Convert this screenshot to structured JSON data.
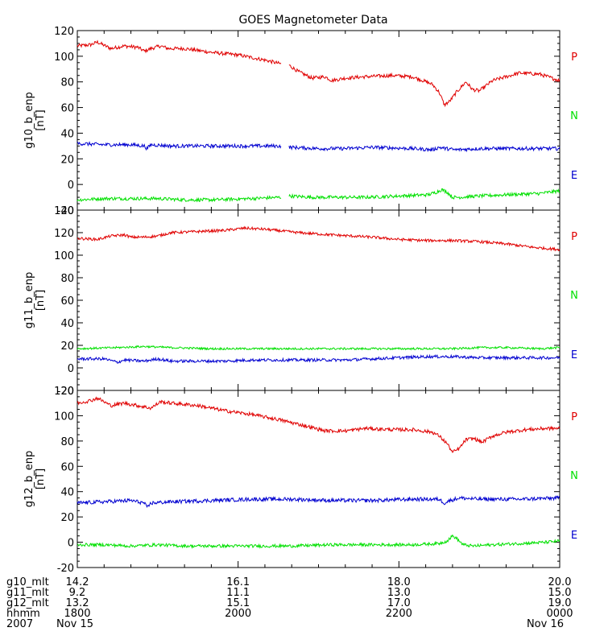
{
  "chart_data": {
    "title": "GOES Magnetometer Data",
    "type": "line",
    "x_range": [
      0,
      360
    ],
    "x_unit": "minutes since 2007 Nov 15 18:00",
    "series_colors": {
      "P": "#e00000",
      "N": "#00e000",
      "E": "#0000d0"
    },
    "panels": [
      {
        "ylabel": "g10_b_enp",
        "yunit": "[nT]",
        "ylim": [
          -20,
          120
        ],
        "yticks": [
          -20,
          0,
          20,
          40,
          60,
          80,
          100,
          120
        ],
        "legend": [
          "P",
          "N",
          "E"
        ],
        "gap": [
          152,
          158
        ],
        "series": [
          {
            "name": "P",
            "noise": 1.4,
            "points": [
              [
                0,
                108
              ],
              [
                10,
                109
              ],
              [
                15,
                111
              ],
              [
                25,
                106
              ],
              [
                35,
                108
              ],
              [
                45,
                107
              ],
              [
                50,
                104
              ],
              [
                55,
                106
              ],
              [
                62,
                108
              ],
              [
                68,
                106
              ],
              [
                80,
                106
              ],
              [
                100,
                103
              ],
              [
                120,
                101
              ],
              [
                140,
                97
              ],
              [
                152,
                94
              ],
              [
                158,
                93
              ],
              [
                165,
                88
              ],
              [
                175,
                83
              ],
              [
                185,
                84
              ],
              [
                190,
                81
              ],
              [
                200,
                83
              ],
              [
                215,
                84
              ],
              [
                235,
                85
              ],
              [
                250,
                84
              ],
              [
                258,
                81
              ],
              [
                265,
                78
              ],
              [
                270,
                72
              ],
              [
                274,
                62
              ],
              [
                278,
                65
              ],
              [
                283,
                72
              ],
              [
                290,
                80
              ],
              [
                295,
                74
              ],
              [
                300,
                73
              ],
              [
                310,
                81
              ],
              [
                320,
                84
              ],
              [
                330,
                87
              ],
              [
                345,
                86
              ],
              [
                360,
                81
              ]
            ]
          },
          {
            "name": "N",
            "noise": 1.3,
            "points": [
              [
                0,
                -12
              ],
              [
                20,
                -11
              ],
              [
                40,
                -11
              ],
              [
                60,
                -11
              ],
              [
                80,
                -12
              ],
              [
                100,
                -12
              ],
              [
                130,
                -11
              ],
              [
                152,
                -10
              ],
              [
                158,
                -9
              ],
              [
                175,
                -10
              ],
              [
                190,
                -10
              ],
              [
                215,
                -10
              ],
              [
                240,
                -9
              ],
              [
                262,
                -8
              ],
              [
                268,
                -6
              ],
              [
                272,
                -4
              ],
              [
                276,
                -6
              ],
              [
                280,
                -10
              ],
              [
                285,
                -10
              ],
              [
                300,
                -9
              ],
              [
                320,
                -8
              ],
              [
                345,
                -7
              ],
              [
                360,
                -5
              ]
            ]
          },
          {
            "name": "E",
            "noise": 1.4,
            "points": [
              [
                0,
                32
              ],
              [
                20,
                31
              ],
              [
                40,
                31
              ],
              [
                50,
                30
              ],
              [
                52,
                28
              ],
              [
                55,
                31
              ],
              [
                70,
                30
              ],
              [
                100,
                30
              ],
              [
                130,
                30
              ],
              [
                152,
                30
              ],
              [
                158,
                29
              ],
              [
                180,
                28
              ],
              [
                200,
                28
              ],
              [
                220,
                29
              ],
              [
                250,
                28
              ],
              [
                265,
                27
              ],
              [
                270,
                29
              ],
              [
                275,
                28
              ],
              [
                282,
                27
              ],
              [
                300,
                28
              ],
              [
                330,
                28
              ],
              [
                360,
                28
              ]
            ]
          }
        ]
      },
      {
        "ylabel": "g11_b_enp",
        "yunit": "[nT]",
        "ylim": [
          -20,
          140
        ],
        "yticks": [
          -20,
          0,
          20,
          40,
          60,
          80,
          100,
          120,
          140
        ],
        "legend": [
          "P",
          "N",
          "E"
        ],
        "series": [
          {
            "name": "P",
            "noise": 1.2,
            "points": [
              [
                0,
                115
              ],
              [
                15,
                114
              ],
              [
                25,
                117
              ],
              [
                35,
                118
              ],
              [
                40,
                116
              ],
              [
                50,
                116
              ],
              [
                60,
                117
              ],
              [
                70,
                120
              ],
              [
                90,
                121
              ],
              [
                110,
                122
              ],
              [
                125,
                124
              ],
              [
                140,
                123
              ],
              [
                165,
                120
              ],
              [
                190,
                118
              ],
              [
                220,
                116
              ],
              [
                240,
                114
              ],
              [
                260,
                113
              ],
              [
                280,
                113
              ],
              [
                300,
                112
              ],
              [
                320,
                110
              ],
              [
                340,
                107
              ],
              [
                360,
                105
              ]
            ]
          },
          {
            "name": "N",
            "noise": 0.9,
            "points": [
              [
                0,
                17
              ],
              [
                30,
                18
              ],
              [
                50,
                19
              ],
              [
                70,
                18
              ],
              [
                100,
                17
              ],
              [
                130,
                17
              ],
              [
                160,
                17
              ],
              [
                190,
                17
              ],
              [
                220,
                17
              ],
              [
                250,
                17
              ],
              [
                280,
                17
              ],
              [
                300,
                18
              ],
              [
                320,
                18
              ],
              [
                345,
                17
              ],
              [
                360,
                18
              ]
            ]
          },
          {
            "name": "E",
            "noise": 1.3,
            "points": [
              [
                0,
                8
              ],
              [
                20,
                8
              ],
              [
                30,
                5
              ],
              [
                35,
                7
              ],
              [
                50,
                6
              ],
              [
                60,
                8
              ],
              [
                70,
                6
              ],
              [
                90,
                6
              ],
              [
                110,
                6
              ],
              [
                130,
                7
              ],
              [
                150,
                7
              ],
              [
                180,
                7
              ],
              [
                200,
                7
              ],
              [
                240,
                9
              ],
              [
                260,
                10
              ],
              [
                280,
                10
              ],
              [
                300,
                9
              ],
              [
                330,
                9
              ],
              [
                360,
                9
              ]
            ]
          }
        ]
      },
      {
        "ylabel": "g12_b_enp",
        "yunit": "[nT]",
        "ylim": [
          -20,
          120
        ],
        "yticks": [
          -20,
          0,
          20,
          40,
          60,
          80,
          100,
          120
        ],
        "legend": [
          "P",
          "N",
          "E"
        ],
        "series": [
          {
            "name": "P",
            "noise": 1.4,
            "points": [
              [
                0,
                110
              ],
              [
                10,
                112
              ],
              [
                15,
                114
              ],
              [
                25,
                108
              ],
              [
                35,
                110
              ],
              [
                45,
                108
              ],
              [
                55,
                106
              ],
              [
                62,
                111
              ],
              [
                70,
                110
              ],
              [
                90,
                108
              ],
              [
                110,
                104
              ],
              [
                130,
                101
              ],
              [
                150,
                97
              ],
              [
                170,
                92
              ],
              [
                185,
                88
              ],
              [
                200,
                88
              ],
              [
                215,
                90
              ],
              [
                235,
                89
              ],
              [
                250,
                89
              ],
              [
                265,
                87
              ],
              [
                270,
                84
              ],
              [
                276,
                78
              ],
              [
                280,
                71
              ],
              [
                285,
                74
              ],
              [
                290,
                81
              ],
              [
                296,
                82
              ],
              [
                302,
                79
              ],
              [
                310,
                84
              ],
              [
                320,
                87
              ],
              [
                335,
                89
              ],
              [
                350,
                90
              ],
              [
                360,
                90
              ]
            ]
          },
          {
            "name": "N",
            "noise": 1.2,
            "points": [
              [
                0,
                -2
              ],
              [
                20,
                -2
              ],
              [
                40,
                -3
              ],
              [
                60,
                -2
              ],
              [
                80,
                -3
              ],
              [
                100,
                -3
              ],
              [
                130,
                -3
              ],
              [
                160,
                -3
              ],
              [
                190,
                -2
              ],
              [
                220,
                -2
              ],
              [
                250,
                -2
              ],
              [
                270,
                -1
              ],
              [
                276,
                1
              ],
              [
                280,
                5
              ],
              [
                283,
                3
              ],
              [
                288,
                -2
              ],
              [
                295,
                -3
              ],
              [
                310,
                -2
              ],
              [
                330,
                -1
              ],
              [
                350,
                0
              ],
              [
                360,
                1
              ]
            ]
          },
          {
            "name": "E",
            "noise": 1.5,
            "points": [
              [
                0,
                31
              ],
              [
                20,
                32
              ],
              [
                40,
                33
              ],
              [
                50,
                31
              ],
              [
                52,
                27
              ],
              [
                55,
                31
              ],
              [
                70,
                32
              ],
              [
                100,
                33
              ],
              [
                130,
                34
              ],
              [
                160,
                34
              ],
              [
                190,
                33
              ],
              [
                220,
                33
              ],
              [
                250,
                34
              ],
              [
                270,
                34
              ],
              [
                274,
                31
              ],
              [
                278,
                33
              ],
              [
                285,
                35
              ],
              [
                300,
                34
              ],
              [
                330,
                34
              ],
              [
                360,
                35
              ]
            ]
          }
        ]
      }
    ],
    "bottom_axis": {
      "row_labels": [
        "g10_mlt",
        "g11_mlt",
        "g12_mlt",
        "hhmm",
        "2007"
      ],
      "ticks": [
        {
          "x": 0,
          "rows": [
            "14.2",
            "9.2",
            "13.2",
            "1800",
            "Nov 15"
          ]
        },
        {
          "x": 120,
          "rows": [
            "16.1",
            "11.1",
            "15.1",
            "2000",
            ""
          ]
        },
        {
          "x": 240,
          "rows": [
            "18.0",
            "13.0",
            "17.0",
            "2200",
            ""
          ]
        },
        {
          "x": 360,
          "rows": [
            "20.0",
            "15.0",
            "19.0",
            "0000",
            "Nov 16"
          ]
        }
      ]
    }
  }
}
